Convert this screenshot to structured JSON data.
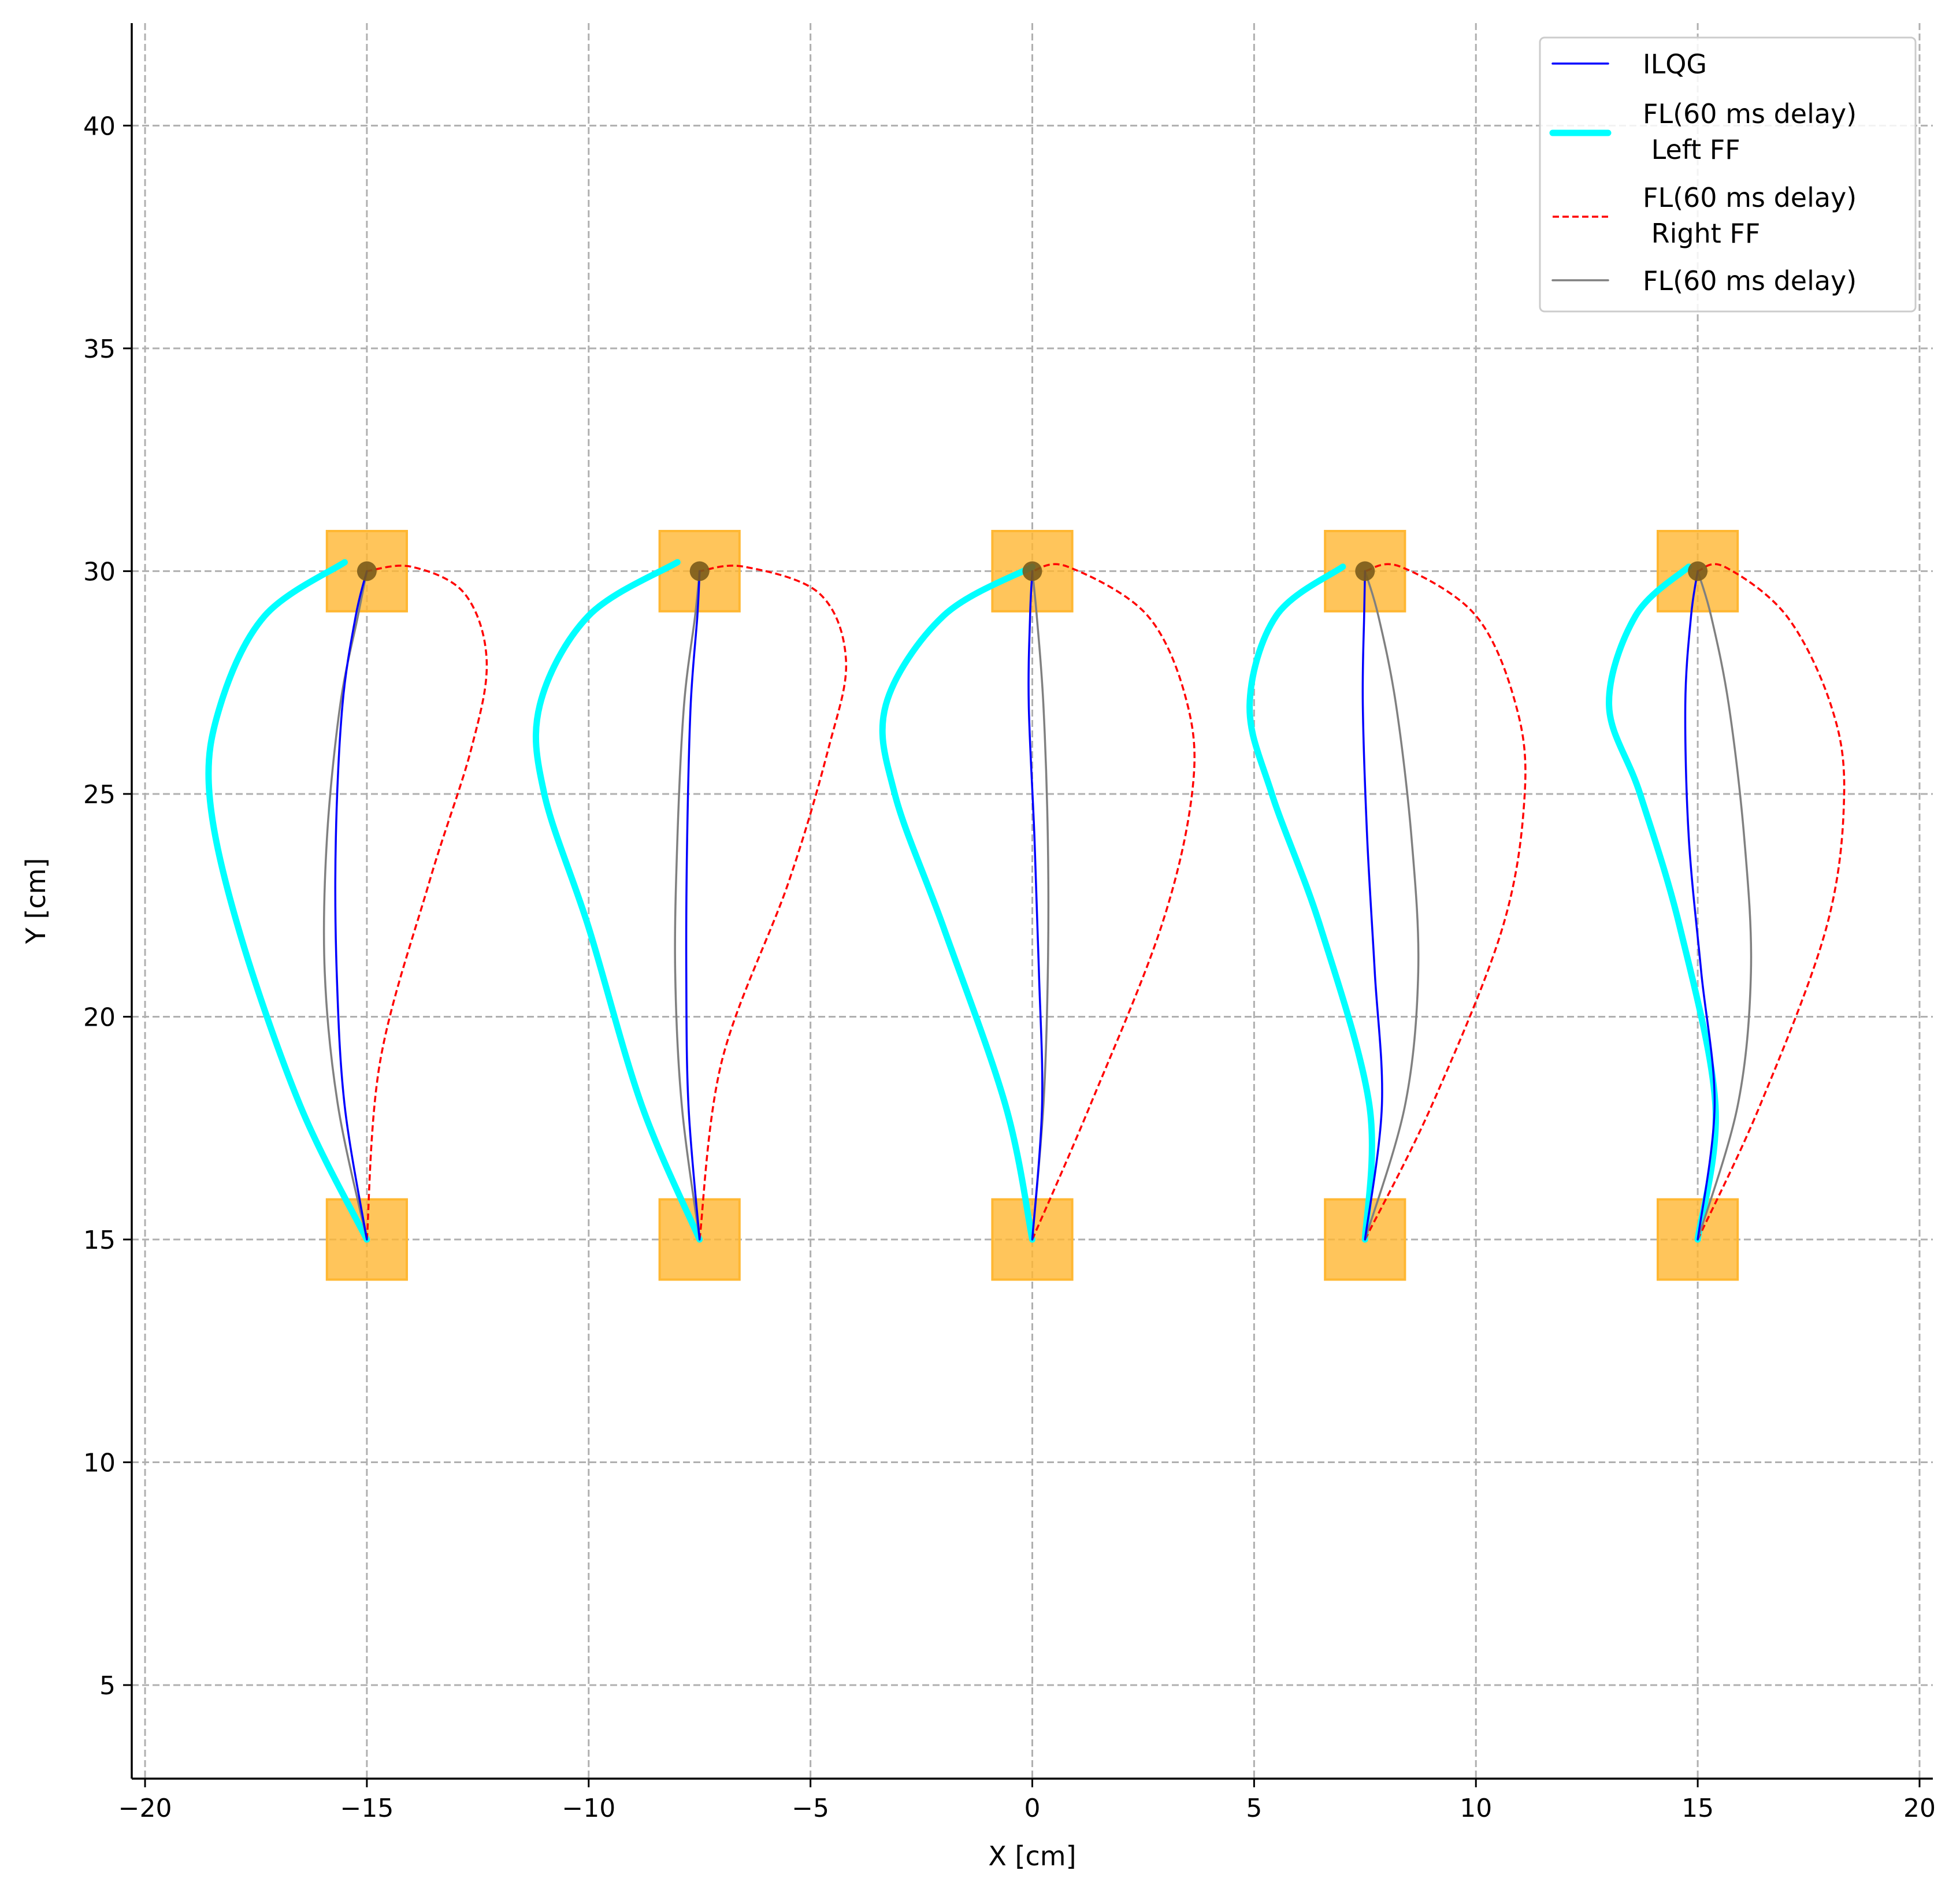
{
  "chart_data": {
    "type": "line",
    "xlabel": "X [cm]",
    "ylabel": "Y [cm]",
    "xlim": [
      -20.3,
      20.3
    ],
    "ylim": [
      2.9,
      42.3
    ],
    "xticks": [
      -20,
      -15,
      -10,
      -5,
      0,
      5,
      10,
      15,
      20
    ],
    "xtick_labels": [
      "−20",
      "−15",
      "−10",
      "−5",
      "0",
      "5",
      "10",
      "15",
      "20"
    ],
    "yticks": [
      5,
      10,
      15,
      20,
      25,
      30,
      35,
      40
    ],
    "ytick_labels": [
      "5",
      "10",
      "15",
      "20",
      "25",
      "30",
      "35",
      "40"
    ],
    "grid": true,
    "legend_position": "top-right",
    "targets": {
      "x": [
        -15,
        -7.5,
        0,
        7.5,
        15
      ],
      "start_y": 15,
      "end_y": 30,
      "color": "#FFB732"
    },
    "series": [
      {
        "name": "ILQG",
        "color": "#0000FF",
        "style": "solid",
        "trajectories": [
          {
            "x": [
              -15.0,
              -15.5,
              -15.68,
              -15.7,
              -15.55,
              -15.25,
              -15.0
            ],
            "y": [
              15,
              18,
              21,
              24,
              27,
              29,
              30
            ]
          },
          {
            "x": [
              -7.5,
              -7.75,
              -7.8,
              -7.78,
              -7.7,
              -7.55,
              -7.5
            ],
            "y": [
              15,
              18,
              21,
              24,
              27,
              29,
              30
            ]
          },
          {
            "x": [
              0.0,
              0.22,
              0.15,
              0.05,
              -0.08,
              -0.05,
              0.0
            ],
            "y": [
              15,
              18,
              21,
              24,
              27,
              29,
              30
            ]
          },
          {
            "x": [
              7.5,
              7.88,
              7.72,
              7.55,
              7.45,
              7.48,
              7.5
            ],
            "y": [
              15,
              18,
              21,
              24,
              27,
              29,
              30
            ]
          },
          {
            "x": [
              15.0,
              15.38,
              15.08,
              14.8,
              14.72,
              14.85,
              15.0
            ],
            "y": [
              15,
              18,
              21,
              24,
              27,
              29,
              30
            ]
          }
        ]
      },
      {
        "name": "FL(60 ms delay)\n Left FF",
        "color": "#00FFFF",
        "style": "thick",
        "trajectories": [
          {
            "x": [
              -15.0,
              -16.5,
              -17.9,
              -18.55,
              -18.3,
              -17.3,
              -15.5
            ],
            "y": [
              15,
              18,
              22,
              25,
              27,
              29,
              30.2
            ]
          },
          {
            "x": [
              -7.5,
              -8.8,
              -10.0,
              -11.0,
              -11.1,
              -10.0,
              -8.0
            ],
            "y": [
              15,
              18,
              22,
              25,
              27,
              29,
              30.2
            ]
          },
          {
            "x": [
              0.0,
              -0.6,
              -2.0,
              -3.1,
              -3.3,
              -2.0,
              0.0
            ],
            "y": [
              15,
              18,
              22,
              25,
              27,
              29,
              30.1
            ]
          },
          {
            "x": [
              7.5,
              7.6,
              6.5,
              5.4,
              4.9,
              5.5,
              7.0
            ],
            "y": [
              15,
              18,
              22,
              25,
              27,
              29,
              30.1
            ]
          },
          {
            "x": [
              15.0,
              15.4,
              14.6,
              13.7,
              13.0,
              13.6,
              14.8
            ],
            "y": [
              15,
              18,
              22,
              25,
              27,
              29,
              30.1
            ]
          }
        ]
      },
      {
        "name": "FL(60 ms delay)\n Right FF",
        "color": "#FF0000",
        "style": "dashed",
        "trajectories": [
          {
            "x": [
              -15.0,
              -14.7,
              -13.6,
              -12.65,
              -12.3,
              -12.8,
              -14.0,
              -15.0
            ],
            "y": [
              15,
              19,
              23,
              26,
              28,
              29.5,
              30.1,
              30.0
            ]
          },
          {
            "x": [
              -7.5,
              -7.0,
              -5.5,
              -4.6,
              -4.2,
              -4.8,
              -6.5,
              -7.5
            ],
            "y": [
              15,
              19,
              23,
              26,
              28,
              29.5,
              30.1,
              30.0
            ]
          },
          {
            "x": [
              0.0,
              1.3,
              2.9,
              3.6,
              3.5,
              2.6,
              0.8,
              0.0
            ],
            "y": [
              15,
              18,
              22,
              25,
              27,
              29,
              30.1,
              30.0
            ]
          },
          {
            "x": [
              7.5,
              9.0,
              10.6,
              11.1,
              10.9,
              10.0,
              8.3,
              7.5
            ],
            "y": [
              15,
              18,
              22,
              25,
              27,
              29,
              30.1,
              30.0
            ]
          },
          {
            "x": [
              15.0,
              16.4,
              17.9,
              18.3,
              18.0,
              17.0,
              15.6,
              15.0
            ],
            "y": [
              15,
              18,
              22,
              25,
              27,
              29,
              30.1,
              30.0
            ]
          }
        ]
      },
      {
        "name": "FL(60 ms delay)",
        "color": "#808080",
        "style": "solid",
        "trajectories": [
          {
            "x": [
              -15.0,
              -15.65,
              -15.95,
              -15.9,
              -15.6,
              -15.2,
              -15.0
            ],
            "y": [
              15,
              18,
              21,
              24,
              27,
              29,
              30
            ]
          },
          {
            "x": [
              -7.5,
              -7.9,
              -8.05,
              -8.0,
              -7.85,
              -7.6,
              -7.5
            ],
            "y": [
              15,
              18,
              21,
              24,
              27,
              29,
              30
            ]
          },
          {
            "x": [
              0.0,
              0.25,
              0.35,
              0.35,
              0.25,
              0.1,
              0.0
            ],
            "y": [
              15,
              18,
              21,
              24,
              27,
              29,
              30
            ]
          },
          {
            "x": [
              7.5,
              8.4,
              8.7,
              8.55,
              8.2,
              7.8,
              7.5
            ],
            "y": [
              15,
              18,
              21,
              24,
              27,
              29,
              30
            ]
          },
          {
            "x": [
              15.0,
              15.9,
              16.2,
              16.05,
              15.7,
              15.3,
              15.0
            ],
            "y": [
              15,
              18,
              21,
              24,
              27,
              29,
              30
            ]
          }
        ]
      }
    ]
  }
}
